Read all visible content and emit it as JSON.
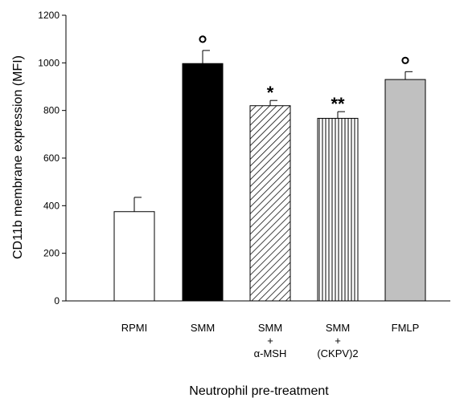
{
  "chart_data": {
    "type": "bar",
    "title": "",
    "xlabel": "Neutrophil pre-treatment",
    "ylabel": "CD11b membrane expression (MFI)",
    "ylim": [
      0,
      1200
    ],
    "yticks": [
      0,
      200,
      400,
      600,
      800,
      1000,
      1200
    ],
    "grid": false,
    "categories": [
      {
        "lines": [
          "RPMI"
        ]
      },
      {
        "lines": [
          "SMM"
        ]
      },
      {
        "lines": [
          "SMM",
          "+",
          "α-MSH"
        ]
      },
      {
        "lines": [
          "SMM",
          "+",
          "(CKPV)2"
        ]
      },
      {
        "lines": [
          "FMLP"
        ]
      }
    ],
    "values": [
      375,
      997,
      820,
      767,
      930
    ],
    "errors": [
      60,
      55,
      22,
      28,
      33
    ],
    "fills": [
      "white",
      "black",
      "diagonal-hatch",
      "vertical-hatch",
      "gray"
    ],
    "annotations": [
      "",
      "°",
      "*",
      "**",
      "°"
    ]
  },
  "colors": {
    "gray_fill": "#c0c0c0",
    "black_fill": "#000000",
    "outline": "#000000"
  }
}
